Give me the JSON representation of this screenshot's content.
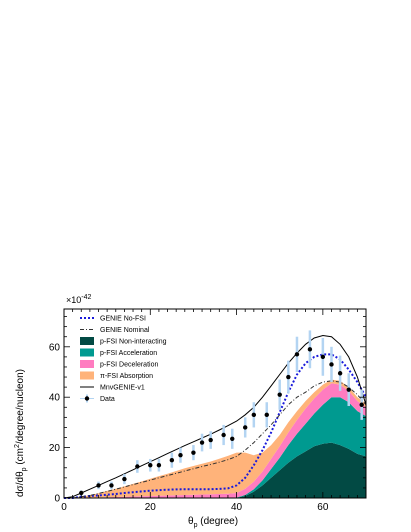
{
  "chart_data": {
    "type": "area",
    "scale_factor": "×10",
    "scale_exponent": "-42",
    "xlabel": "θ",
    "xlabel_sub": "p",
    "xlabel_suffix": " (degree)",
    "ylabel": "dσ/dθ",
    "ylabel_sub": "p",
    "ylabel_suffix": " (cm",
    "ylabel_sup": "2",
    "ylabel_end": "/degree/nucleon)",
    "xlim": [
      0,
      70
    ],
    "ylim": [
      0,
      75
    ],
    "xticks": [
      0,
      20,
      40,
      60
    ],
    "yticks": [
      0,
      20,
      40,
      60
    ],
    "x": [
      0,
      2,
      4,
      6,
      8,
      10,
      12,
      14,
      16,
      18,
      20,
      22,
      24,
      26,
      28,
      30,
      32,
      34,
      36,
      38,
      40,
      42,
      44,
      46,
      48,
      50,
      52,
      54,
      56,
      58,
      60,
      62,
      64,
      66,
      68,
      70
    ],
    "stack": [
      {
        "name": "p-FSI Non-interacting",
        "color": "#024a44",
        "values": [
          0,
          0,
          0,
          0,
          0,
          0,
          0,
          0,
          0,
          0,
          0,
          0,
          0,
          0,
          0,
          0,
          0,
          0,
          0,
          0,
          0.1,
          0.8,
          2.5,
          5,
          8,
          11,
          14,
          16.5,
          18.5,
          20.5,
          21.5,
          22,
          21,
          19.5,
          17.5,
          16.5
        ]
      },
      {
        "name": "p-FSI Acceleration",
        "color": "#009a90",
        "values": [
          0,
          0,
          0,
          0,
          0,
          0,
          0,
          0,
          0,
          0,
          0,
          0,
          0,
          0,
          0,
          0,
          0,
          0,
          0,
          0,
          0.1,
          0.4,
          1,
          2,
          3.5,
          5,
          7,
          9,
          11,
          13,
          15.5,
          18,
          19,
          18.5,
          17,
          16
        ]
      },
      {
        "name": "p-FSI Deceleration",
        "color": "#ff7cc0",
        "values": [
          0,
          0,
          0,
          0.1,
          0.2,
          0.3,
          0.4,
          0.5,
          0.6,
          0.7,
          0.8,
          0.9,
          1,
          1.1,
          1.2,
          1.3,
          1.4,
          1.5,
          1.6,
          1.7,
          1.8,
          2.5,
          3,
          3.5,
          4,
          4.5,
          5,
          5.5,
          6,
          6,
          6,
          5.5,
          5,
          4.5,
          4,
          3.5
        ]
      },
      {
        "name": "π-FSI Absorption",
        "color": "#ffb37a",
        "values": [
          0,
          0.1,
          0.5,
          1,
          1.7,
          2.5,
          3.3,
          4.1,
          5,
          5.9,
          6.8,
          7.8,
          8.6,
          9.6,
          10.6,
          11.4,
          12.2,
          13,
          14,
          15,
          16,
          14.3,
          10.5,
          7.5,
          5.5,
          4.5,
          4,
          3.5,
          3,
          2.5,
          2,
          1.5,
          1.5,
          1.5,
          1.5,
          1.5
        ]
      }
    ],
    "lines": [
      {
        "name": "GENIE No-FSI",
        "style": "dotted",
        "color": "#1a1adb",
        "values": [
          0,
          0,
          0.5,
          0.8,
          1,
          1.3,
          1.6,
          2,
          2.3,
          2.6,
          2.9,
          3.1,
          3.3,
          3.4,
          3.5,
          3.5,
          3.5,
          3.5,
          3.6,
          3.8,
          5,
          8,
          13,
          19,
          26,
          34,
          42,
          49,
          53.5,
          56,
          57,
          57,
          55,
          51,
          46,
          40
        ]
      },
      {
        "name": "GENIE Nominal",
        "style": "dashdot",
        "color": "#333333",
        "values": [
          0,
          0,
          0.5,
          1,
          1.8,
          2.6,
          3.5,
          4.4,
          5.3,
          6.2,
          7.1,
          8,
          8.9,
          9.8,
          10.7,
          11.6,
          12.5,
          13.3,
          14.2,
          15.2,
          16.5,
          19,
          22,
          25.5,
          29,
          33,
          37,
          40,
          42,
          44.5,
          46,
          46.5,
          46,
          44,
          41,
          37
        ]
      },
      {
        "name": "MnvGENIE-v1",
        "style": "solid",
        "color": "#000000",
        "values": [
          0,
          0.5,
          2,
          3.5,
          5,
          6.5,
          8,
          9.6,
          11.2,
          12.8,
          14.4,
          16,
          17.6,
          19.2,
          20.8,
          22.3,
          23.8,
          25.3,
          27,
          28.7,
          30.5,
          33,
          36,
          40,
          44.5,
          49,
          53.5,
          57.5,
          61,
          63.5,
          64.5,
          64,
          61,
          56,
          48,
          37
        ]
      }
    ],
    "data_points": {
      "name": "Data",
      "color": "#000000",
      "error_color": "#b3d4f2",
      "x": [
        4,
        8,
        11,
        14,
        17,
        20,
        22,
        25,
        27,
        30,
        32,
        34,
        37,
        39,
        42,
        44,
        47,
        50,
        52,
        54,
        57,
        60,
        62,
        64,
        66,
        69
      ],
      "y": [
        2,
        5,
        5,
        7.5,
        12.5,
        13,
        13,
        15,
        17,
        18,
        22,
        23,
        25,
        23.5,
        28,
        33,
        33,
        41,
        48,
        57,
        59,
        56,
        53,
        49.5,
        43,
        37
      ],
      "err": [
        1,
        1.5,
        1.5,
        2,
        2.5,
        2.5,
        2.5,
        3,
        3,
        3,
        3.5,
        3.5,
        4,
        4,
        4,
        5,
        5,
        6,
        6.5,
        7,
        7.5,
        7.5,
        7,
        7,
        6.5,
        6
      ]
    },
    "legend": [
      {
        "label": "GENIE No-FSI",
        "kind": "dotted",
        "color": "#1a1adb"
      },
      {
        "label": "GENIE Nominal",
        "kind": "dashdot",
        "color": "#333333"
      },
      {
        "label": "p-FSI Non-interacting",
        "kind": "box",
        "color": "#024a44"
      },
      {
        "label": "p-FSI Acceleration",
        "kind": "box",
        "color": "#009a90"
      },
      {
        "label": "p-FSI Deceleration",
        "kind": "box",
        "color": "#ff7cc0"
      },
      {
        "label": "π-FSI Absorption",
        "kind": "box",
        "color": "#ffb37a"
      },
      {
        "label": "MnvGENIE-v1",
        "kind": "solid",
        "color": "#000000"
      },
      {
        "label": "Data",
        "kind": "marker",
        "color": "#000000"
      }
    ],
    "legend_position": "top-left",
    "grid": false
  }
}
